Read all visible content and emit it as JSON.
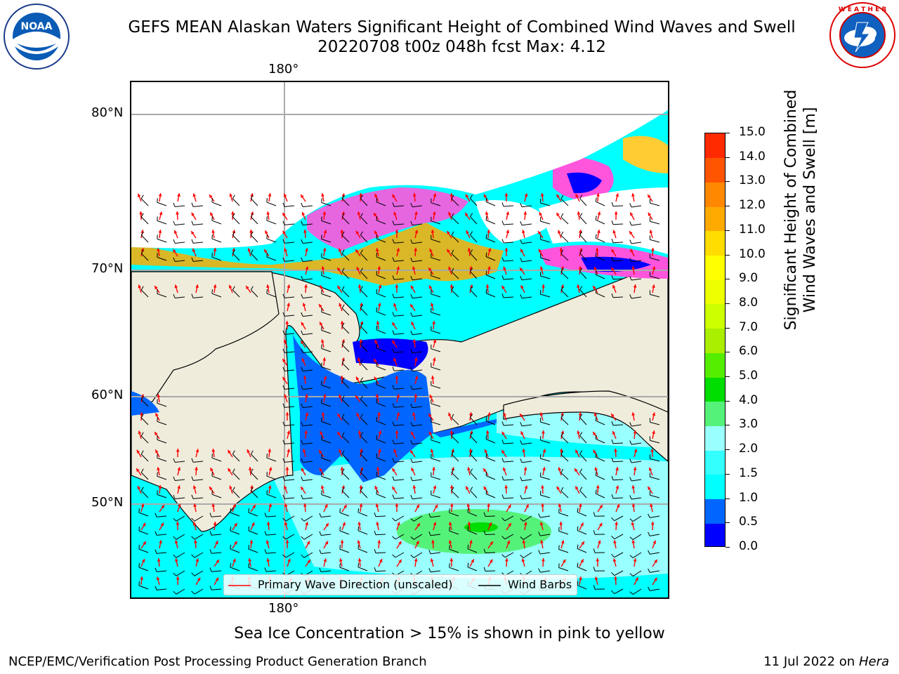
{
  "title": {
    "line1": "GEFS MEAN Alaskan Waters Significant Height of Combined Wind Waves and Swell",
    "line2": "20220708 t00z 048h fcst   Max: 4.12"
  },
  "logos": {
    "left": {
      "name": "noaa-logo",
      "text": "NOAA",
      "ring_text": "NATIONAL OCEANIC AND ATMOSPHERIC ADMINISTRATION · U.S. DEPARTMENT OF COMMERCE"
    },
    "right": {
      "name": "nws-logo",
      "ring_text": "NATIONAL WEATHER SERVICE"
    }
  },
  "map": {
    "lon_tick_top": "180°",
    "lon_tick_bottom": "180°",
    "lat_ticks": [
      "80°N",
      "70°N",
      "60°N",
      "50°N"
    ],
    "land_color": "#f0ecdc",
    "gridline_color": "#aaaaaa"
  },
  "legend": {
    "wave_dir_label": "Primary Wave Direction (unscaled)",
    "wave_dir_color": "#ff0000",
    "wind_barb_label": "Wind Barbs",
    "wind_barb_color": "#000000"
  },
  "colorbar": {
    "label_line1": "Significant Height of Combined",
    "label_line2": "Wind Waves and Swell [m]",
    "ticks": [
      "0.0",
      "0.5",
      "1.0",
      "1.5",
      "2.0",
      "3.0",
      "4.0",
      "5.0",
      "6.0",
      "7.0",
      "8.0",
      "9.0",
      "10.0",
      "11.0",
      "12.0",
      "13.0",
      "14.0",
      "15.0"
    ],
    "colors": [
      "#0000ff",
      "#0066ff",
      "#00ffff",
      "#33ffff",
      "#99ffff",
      "#55f27a",
      "#00dd00",
      "#55ee00",
      "#aaee00",
      "#ccff00",
      "#eeff00",
      "#ffff00",
      "#ffdd00",
      "#ffaa00",
      "#ff8800",
      "#ff5500",
      "#ff2a00",
      "#ff0000"
    ]
  },
  "chart_data": {
    "type": "heatmap",
    "region": "Alaskan Waters",
    "variable": "Significant Height of Combined Wind Waves and Swell",
    "units": "m",
    "max": 4.12,
    "run": "20220708 t00z",
    "forecast_hour": "048h",
    "levels": [
      0.0,
      0.5,
      1.0,
      1.5,
      2.0,
      3.0,
      4.0,
      5.0,
      6.0,
      7.0,
      8.0,
      9.0,
      10.0,
      11.0,
      12.0,
      13.0,
      14.0,
      15.0
    ]
  },
  "footnote": "Sea Ice Concentration > 15% is shown in pink to yellow",
  "credit_left": "NCEP/EMC/Verification Post Processing Product Generation Branch",
  "credit_right_date": "11 Jul 2022 on ",
  "credit_right_host": "Hera"
}
